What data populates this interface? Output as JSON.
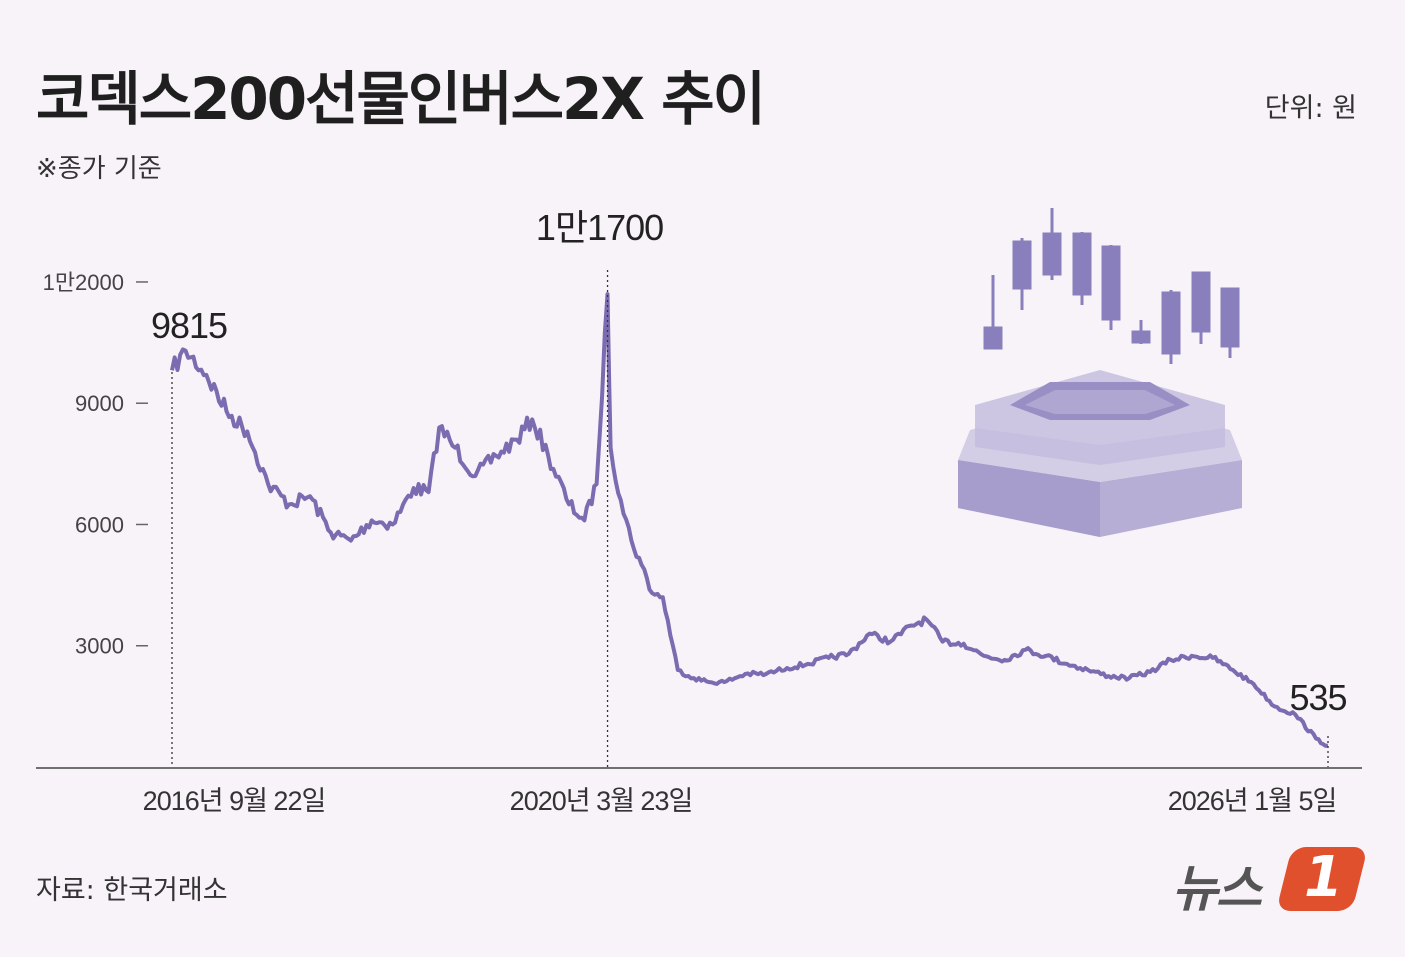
{
  "title": "코덱스200선물인버스2X 추이",
  "unit": "단위: 원",
  "note": "※종가 기준",
  "source": "자료: 한국거래소",
  "logo": {
    "text": "뉴스",
    "badge": "1"
  },
  "colors": {
    "line": "#7b6bb0",
    "background": "#f8f3f8",
    "illustration": "#8a7fbd",
    "logo_badge": "#e0502c"
  },
  "chart_data": {
    "type": "line",
    "title": "코덱스200선물인버스2X 추이",
    "ylabel": "원",
    "ylim": [
      0,
      12000
    ],
    "yticks": [
      3000,
      6000,
      9000,
      12000
    ],
    "ytick_labels": [
      "3000",
      "6000",
      "9000",
      "1만2000"
    ],
    "xtick_labels": [
      "2016년 9월 22일",
      "2020년 3월 23일",
      "2026년 1월 5일"
    ],
    "annotations": [
      {
        "label": "9815",
        "date": "2016-09-22",
        "value": 9815
      },
      {
        "label": "1만1700",
        "date": "2020-03-23",
        "value": 11700
      },
      {
        "label": "535",
        "date": "2026-01-05",
        "value": 535
      }
    ],
    "x": [
      "2016-09-22",
      "2016-11-01",
      "2017-01-01",
      "2017-03-01",
      "2017-05-01",
      "2017-07-01",
      "2017-09-01",
      "2017-11-01",
      "2018-01-01",
      "2018-03-01",
      "2018-05-01",
      "2018-07-01",
      "2018-09-01",
      "2018-10-15",
      "2018-11-15",
      "2019-01-01",
      "2019-03-01",
      "2019-05-01",
      "2019-07-01",
      "2019-08-15",
      "2019-10-01",
      "2019-12-01",
      "2020-01-15",
      "2020-02-20",
      "2020-03-23",
      "2020-04-01",
      "2020-05-01",
      "2020-06-01",
      "2020-07-01",
      "2020-08-01",
      "2020-09-01",
      "2020-10-15",
      "2020-12-01",
      "2021-01-15",
      "2021-03-01",
      "2021-05-01",
      "2021-07-01",
      "2021-09-01",
      "2021-11-01",
      "2022-01-01",
      "2022-03-01",
      "2022-05-01",
      "2022-07-01",
      "2022-09-01",
      "2022-10-15",
      "2022-12-01",
      "2023-02-01",
      "2023-04-01",
      "2023-06-01",
      "2023-08-01",
      "2023-10-01",
      "2023-12-01",
      "2024-02-01",
      "2024-04-01",
      "2024-06-01",
      "2024-08-01",
      "2024-10-01",
      "2024-12-01",
      "2025-02-01",
      "2025-04-01",
      "2025-06-01",
      "2025-08-01",
      "2025-10-01",
      "2025-12-01",
      "2026-01-05"
    ],
    "series": [
      {
        "values": [
          9815,
          10300,
          9700,
          8800,
          8300,
          7000,
          6500,
          6700,
          5800,
          5600,
          6100,
          6000,
          6900,
          6800,
          8400,
          7900,
          7200,
          7700,
          8100,
          8600,
          7700,
          6500,
          6100,
          7000,
          11700,
          7900,
          6600,
          5600,
          5000,
          4300,
          4200,
          2400,
          2200,
          2100,
          2100,
          2300,
          2300,
          2450,
          2550,
          2700,
          2800,
          3300,
          3100,
          3500,
          3650,
          3100,
          3050,
          2750,
          2650,
          2900,
          2750,
          2550,
          2400,
          2250,
          2200,
          2350,
          2650,
          2750,
          2700,
          2400,
          2050,
          1500,
          1300,
          700,
          535
        ]
      }
    ]
  }
}
